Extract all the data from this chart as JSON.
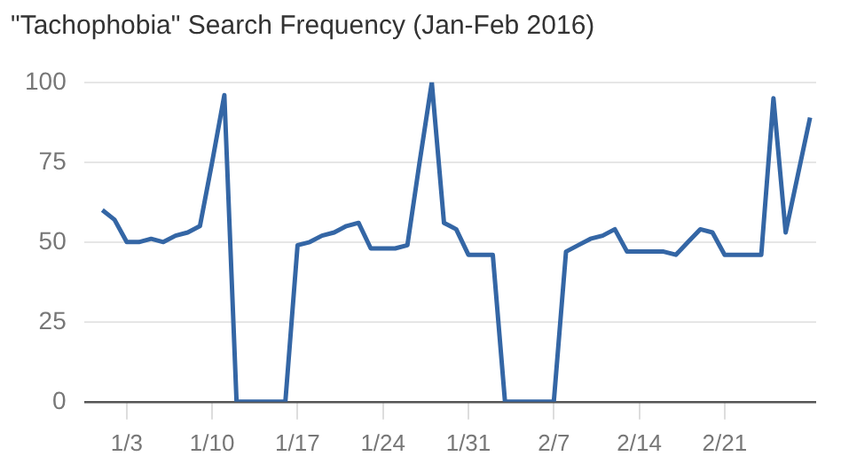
{
  "chart_data": {
    "type": "line",
    "title": "\"Tachophobia\" Search Frequency (Jan-Feb 2016)",
    "x": [
      "2016-01-01",
      "2016-01-02",
      "2016-01-03",
      "2016-01-04",
      "2016-01-05",
      "2016-01-06",
      "2016-01-07",
      "2016-01-08",
      "2016-01-09",
      "2016-01-10",
      "2016-01-11",
      "2016-01-12",
      "2016-01-13",
      "2016-01-14",
      "2016-01-15",
      "2016-01-16",
      "2016-01-17",
      "2016-01-18",
      "2016-01-19",
      "2016-01-20",
      "2016-01-21",
      "2016-01-22",
      "2016-01-23",
      "2016-01-24",
      "2016-01-25",
      "2016-01-26",
      "2016-01-27",
      "2016-01-28",
      "2016-01-29",
      "2016-01-30",
      "2016-01-31",
      "2016-02-01",
      "2016-02-02",
      "2016-02-03",
      "2016-02-04",
      "2016-02-05",
      "2016-02-06",
      "2016-02-07",
      "2016-02-08",
      "2016-02-09",
      "2016-02-10",
      "2016-02-11",
      "2016-02-12",
      "2016-02-13",
      "2016-02-14",
      "2016-02-15",
      "2016-02-16",
      "2016-02-17",
      "2016-02-18",
      "2016-02-19",
      "2016-02-20",
      "2016-02-21",
      "2016-02-22",
      "2016-02-23",
      "2016-02-24",
      "2016-02-25",
      "2016-02-26",
      "2016-02-27",
      "2016-02-28"
    ],
    "series": [
      {
        "color": "#3466a5",
        "values": [
          60,
          57,
          50,
          50,
          51,
          50,
          52,
          53,
          55,
          75,
          96,
          0,
          0,
          0,
          0,
          0,
          49,
          50,
          52,
          53,
          55,
          56,
          48,
          48,
          48,
          49,
          75,
          100,
          56,
          54,
          46,
          46,
          46,
          0,
          0,
          0,
          0,
          0,
          47,
          49,
          51,
          52,
          54,
          47,
          47,
          47,
          47,
          46,
          50,
          54,
          53,
          46,
          46,
          46,
          46,
          95,
          53,
          71,
          89
        ]
      }
    ],
    "xlim": [
      "2015-12-30T12:00",
      "2016-02-28T12:00"
    ],
    "xticks": [
      {
        "value": "2016-01-03",
        "label": "1/3"
      },
      {
        "value": "2016-01-10",
        "label": "1/10"
      },
      {
        "value": "2016-01-17",
        "label": "1/17"
      },
      {
        "value": "2016-01-24",
        "label": "1/24"
      },
      {
        "value": "2016-01-31",
        "label": "1/31"
      },
      {
        "value": "2016-02-07",
        "label": "2/7"
      },
      {
        "value": "2016-02-14",
        "label": "2/14"
      },
      {
        "value": "2016-02-21",
        "label": "2/21"
      }
    ],
    "ylim": [
      0,
      100
    ],
    "yticks": [
      0,
      25,
      50,
      75,
      100
    ],
    "grid": "y",
    "legend": false,
    "marker": "none",
    "line_style": "solid"
  }
}
